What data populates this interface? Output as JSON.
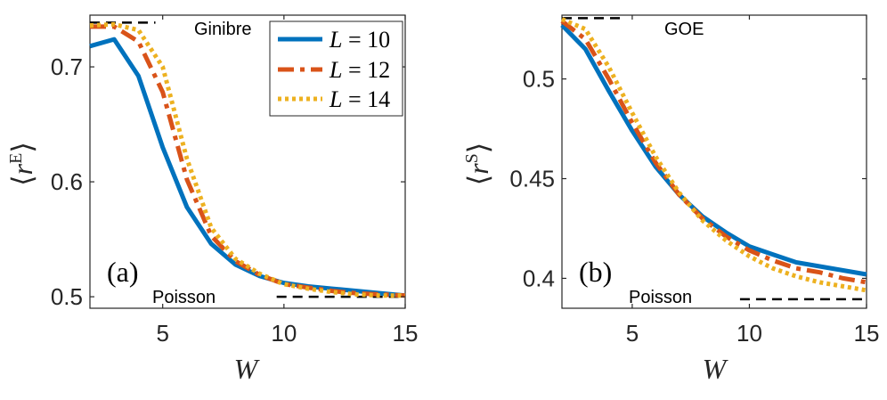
{
  "chart_data": [
    {
      "type": "line",
      "panel_label": "(a)",
      "xlabel": "W",
      "ylabel": {
        "symbol": "r",
        "superscript": "E"
      },
      "xlim": [
        2,
        15
      ],
      "ylim": [
        0.49,
        0.745
      ],
      "xticks": [
        5,
        10,
        15
      ],
      "yticks": [
        0.5,
        0.6,
        0.7
      ],
      "ytick_labels": [
        "0.5",
        "0.6",
        "0.7"
      ],
      "x": [
        2,
        3,
        4,
        5,
        6,
        7,
        8,
        9,
        10,
        11,
        12,
        13,
        14,
        15
      ],
      "series": [
        {
          "name": "L = 10",
          "label_var": "L",
          "label_val": "= 10",
          "style": "solid",
          "values": [
            0.718,
            0.724,
            0.692,
            0.63,
            0.578,
            0.546,
            0.528,
            0.518,
            0.512,
            0.509,
            0.507,
            0.505,
            0.503,
            0.501
          ]
        },
        {
          "name": "L = 12",
          "label_var": "L",
          "label_val": "= 12",
          "style": "dashdot",
          "values": [
            0.735,
            0.735,
            0.722,
            0.678,
            0.602,
            0.553,
            0.531,
            0.519,
            0.511,
            0.508,
            0.505,
            0.503,
            0.502,
            0.501
          ]
        },
        {
          "name": "L = 14",
          "label_var": "L",
          "label_val": "= 14",
          "style": "dotted",
          "values": [
            0.736,
            0.737,
            0.732,
            0.7,
            0.62,
            0.56,
            0.533,
            0.52,
            0.511,
            0.507,
            0.504,
            0.502,
            0.501,
            0.501
          ]
        }
      ],
      "reference_lines": [
        {
          "label": "Ginibre",
          "y": 0.7385,
          "x_start": 2.0,
          "x_end": 4.7
        },
        {
          "label": "Poisson",
          "y": 0.5,
          "x_start": 9.7,
          "x_end": 15.0
        }
      ],
      "legend": "top-right"
    },
    {
      "type": "line",
      "panel_label": "(b)",
      "xlabel": "W",
      "ylabel": {
        "symbol": "r",
        "superscript": "S"
      },
      "xlim": [
        2,
        15
      ],
      "ylim": [
        0.385,
        0.532
      ],
      "xticks": [
        5,
        10,
        15
      ],
      "yticks": [
        0.4,
        0.45,
        0.5
      ],
      "ytick_labels": [
        "0.4",
        "0.45",
        "0.5"
      ],
      "x": [
        2,
        3,
        4,
        5,
        6,
        7,
        8,
        9,
        10,
        11,
        12,
        13,
        14,
        15
      ],
      "series": [
        {
          "name": "L = 10",
          "style": "solid",
          "values": [
            0.527,
            0.515,
            0.494,
            0.474,
            0.456,
            0.442,
            0.431,
            0.423,
            0.416,
            0.412,
            0.408,
            0.406,
            0.404,
            0.402
          ]
        },
        {
          "name": "L = 12",
          "style": "dashdot",
          "values": [
            0.529,
            0.52,
            0.5,
            0.478,
            0.458,
            0.442,
            0.43,
            0.421,
            0.414,
            0.409,
            0.405,
            0.403,
            0.4,
            0.398
          ]
        },
        {
          "name": "L = 14",
          "style": "dotted",
          "values": [
            0.53,
            0.525,
            0.506,
            0.483,
            0.461,
            0.443,
            0.429,
            0.419,
            0.411,
            0.405,
            0.401,
            0.398,
            0.396,
            0.394
          ]
        }
      ],
      "reference_lines": [
        {
          "label": "GOE",
          "y": 0.5305,
          "x_start": 2.0,
          "x_end": 4.5
        },
        {
          "label": "Poisson",
          "y": 0.3895,
          "x_start": 9.6,
          "x_end": 15.0
        }
      ]
    }
  ],
  "colors": {
    "L10": "#0072BD",
    "L12": "#D95319",
    "L14": "#EDB120",
    "reference": "#000000",
    "axes": "#262626"
  }
}
